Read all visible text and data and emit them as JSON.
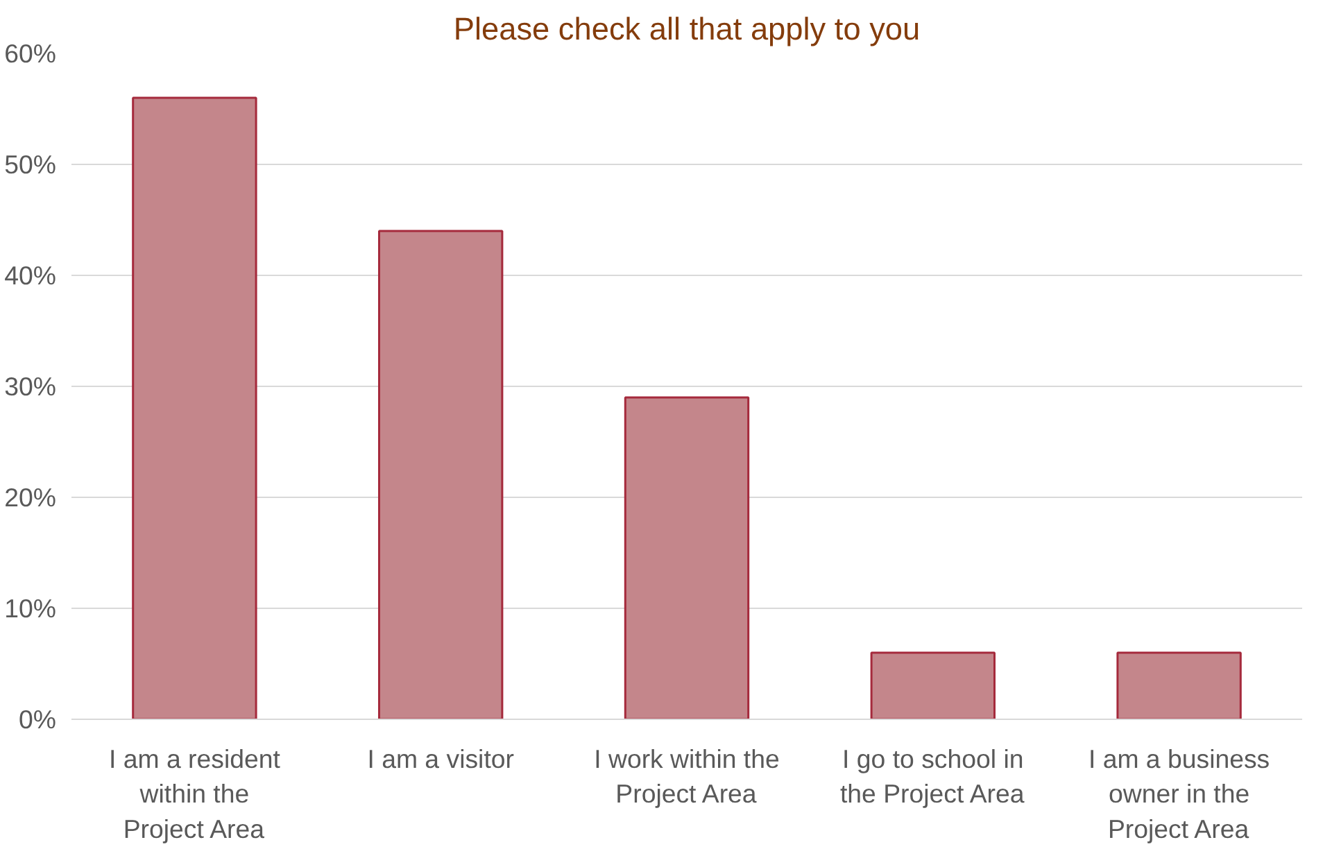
{
  "chart_data": {
    "type": "bar",
    "title": "Please check all that apply to you",
    "categories": [
      "I am a resident within the Project Area",
      "I am a visitor",
      "I work within the Project Area",
      "I go to school in the Project Area",
      "I am a business owner in the Project Area"
    ],
    "values": [
      56,
      44,
      29,
      6,
      6
    ],
    "color": "#c4868b",
    "ylim": [
      0,
      60
    ],
    "yticks": [
      {
        "value": 0,
        "label": "0%"
      },
      {
        "value": 10,
        "label": "10%"
      },
      {
        "value": 20,
        "label": "20%"
      },
      {
        "value": 30,
        "label": "30%"
      },
      {
        "value": 40,
        "label": "40%"
      },
      {
        "value": 50,
        "label": "50%"
      },
      {
        "value": 60,
        "label": "60%"
      }
    ],
    "grid": "y"
  }
}
